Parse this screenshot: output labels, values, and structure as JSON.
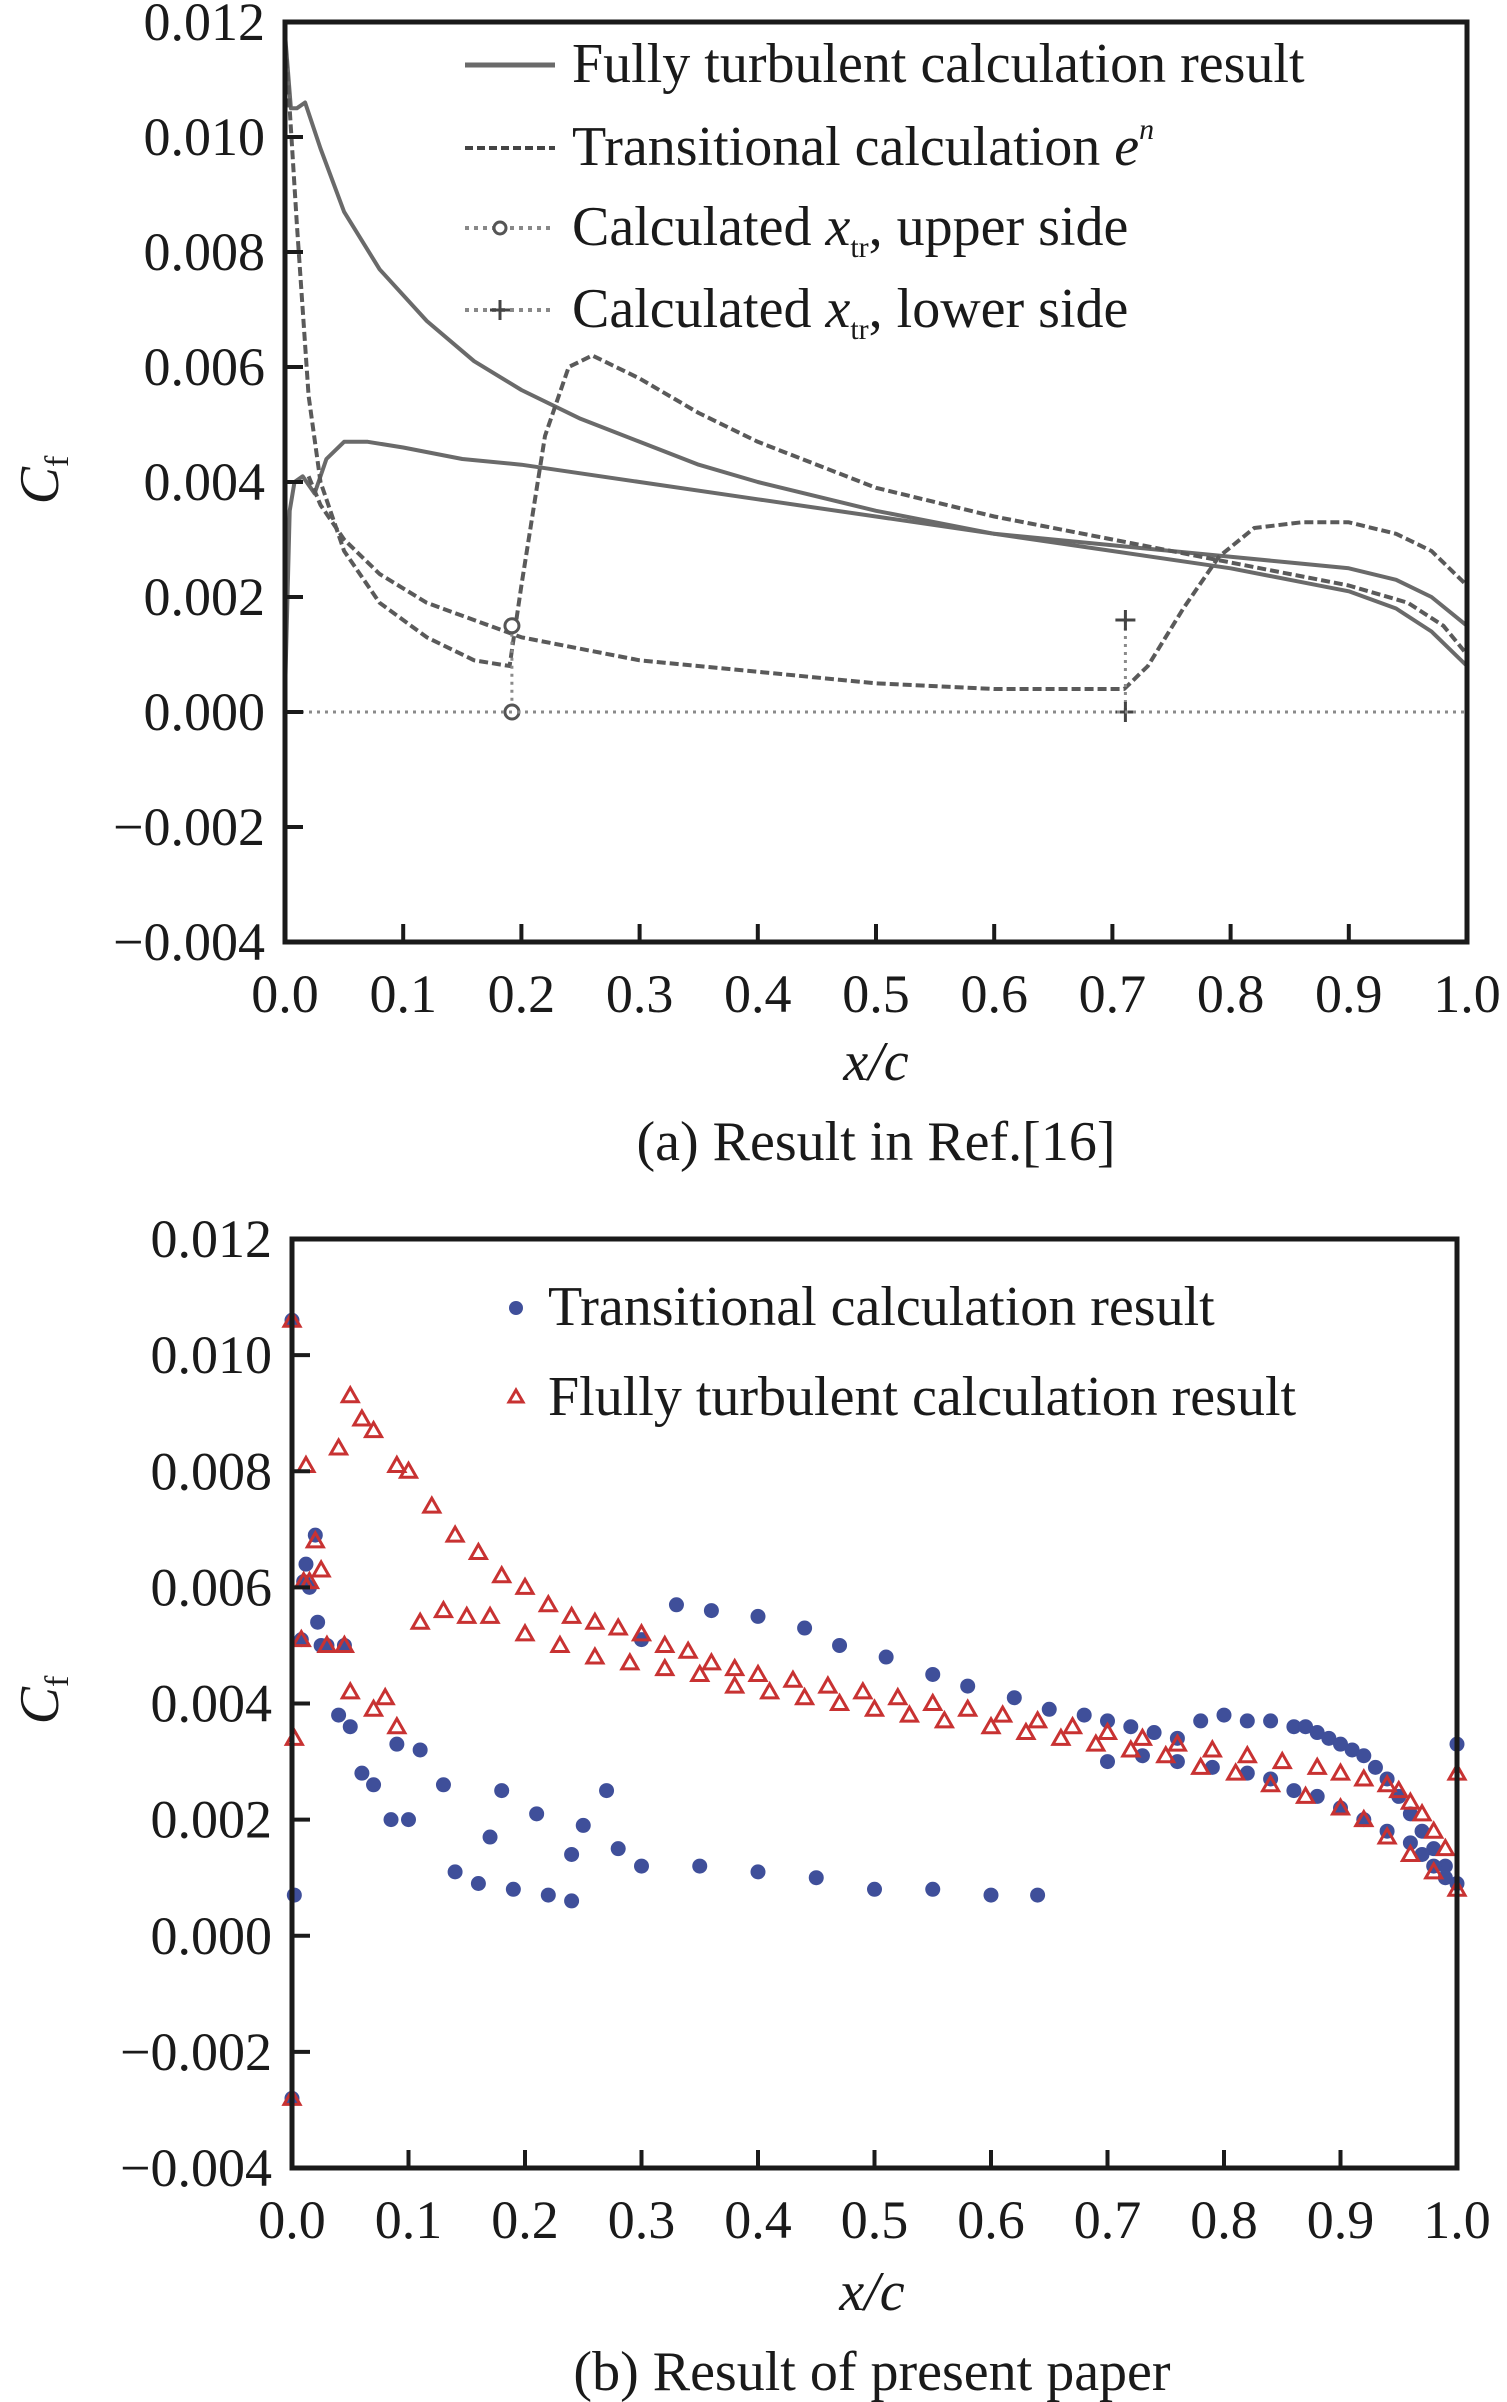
{
  "colors": {
    "axis": "#1a1a1a",
    "ref_line": "#6a6a6a",
    "transitional_marker": "#3f4f9a",
    "turbulent_marker": "#c83232"
  },
  "chart_data": [
    {
      "type": "line",
      "panel": "a",
      "caption": "(a) Result in Ref.[16]",
      "xlabel": "x/c",
      "ylabel": "C",
      "ylabel_sub": "f",
      "xlim": [
        0.0,
        1.0
      ],
      "ylim": [
        -0.004,
        0.012
      ],
      "x_ticks": [
        "0.0",
        "0.1",
        "0.2",
        "0.3",
        "0.4",
        "0.5",
        "0.6",
        "0.7",
        "0.8",
        "0.9",
        "1.0"
      ],
      "y_ticks": [
        "0.012",
        "0.010",
        "0.008",
        "0.006",
        "0.004",
        "0.002",
        "0.000",
        "−0.002",
        "−0.004"
      ],
      "grid": false,
      "legend_position": "top-right",
      "legend": [
        {
          "label_main": "Fully turbulent calculation result",
          "style": "solid"
        },
        {
          "label_main": "Transitional calculation ",
          "label_italic": "e",
          "label_sup": "n",
          "style": "dashed"
        },
        {
          "label_main": "Calculated ",
          "label_italic": "x",
          "label_sub": "tr",
          "label_rest": ", upper side",
          "style": "dotted-circle"
        },
        {
          "label_main": "Calculated ",
          "label_italic": "x",
          "label_sub": "tr",
          "label_rest": ", lower side",
          "style": "dotted-plus"
        }
      ],
      "series": [
        {
          "name": "Fully turbulent upper",
          "style": "solid",
          "x": [
            0.0,
            0.005,
            0.01,
            0.017,
            0.03,
            0.05,
            0.08,
            0.12,
            0.16,
            0.2,
            0.25,
            0.3,
            0.35,
            0.4,
            0.5,
            0.6,
            0.7,
            0.8,
            0.85,
            0.9,
            0.94,
            0.97,
            1.0
          ],
          "y": [
            0.0118,
            0.0105,
            0.0105,
            0.0106,
            0.0098,
            0.0087,
            0.0077,
            0.0068,
            0.0061,
            0.0056,
            0.0051,
            0.0047,
            0.0043,
            0.004,
            0.0035,
            0.0031,
            0.0028,
            0.0025,
            0.0023,
            0.0021,
            0.0018,
            0.0014,
            0.0008
          ]
        },
        {
          "name": "Fully turbulent lower",
          "style": "solid",
          "x": [
            0.0,
            0.004,
            0.008,
            0.015,
            0.025,
            0.035,
            0.05,
            0.07,
            0.1,
            0.15,
            0.2,
            0.3,
            0.4,
            0.5,
            0.6,
            0.7,
            0.8,
            0.85,
            0.9,
            0.94,
            0.97,
            1.0
          ],
          "y": [
            0.0003,
            0.0035,
            0.004,
            0.0041,
            0.0038,
            0.0044,
            0.0047,
            0.0047,
            0.0046,
            0.0044,
            0.0043,
            0.004,
            0.0037,
            0.0034,
            0.0031,
            0.0029,
            0.0027,
            0.0026,
            0.0025,
            0.0023,
            0.002,
            0.0015
          ]
        },
        {
          "name": "Transitional e^n upper",
          "style": "dashed",
          "x": [
            0.0,
            0.01,
            0.02,
            0.03,
            0.05,
            0.08,
            0.12,
            0.16,
            0.19,
            0.2,
            0.22,
            0.24,
            0.26,
            0.3,
            0.35,
            0.4,
            0.5,
            0.6,
            0.7,
            0.8,
            0.9,
            0.95,
            0.98,
            1.0
          ],
          "y": [
            0.0118,
            0.0085,
            0.0055,
            0.004,
            0.0028,
            0.0019,
            0.0013,
            0.0009,
            0.0008,
            0.0022,
            0.0048,
            0.006,
            0.0062,
            0.0058,
            0.0052,
            0.0047,
            0.0039,
            0.0034,
            0.003,
            0.0026,
            0.0022,
            0.0019,
            0.0015,
            0.001
          ]
        },
        {
          "name": "Transitional e^n lower",
          "style": "dashed",
          "x": [
            0.02,
            0.03,
            0.05,
            0.08,
            0.12,
            0.2,
            0.3,
            0.4,
            0.5,
            0.6,
            0.71,
            0.73,
            0.76,
            0.79,
            0.82,
            0.86,
            0.9,
            0.94,
            0.97,
            1.0
          ],
          "y": [
            0.0041,
            0.0036,
            0.003,
            0.0024,
            0.0019,
            0.0013,
            0.0009,
            0.0007,
            0.0005,
            0.0004,
            0.0004,
            0.0008,
            0.0018,
            0.0027,
            0.0032,
            0.0033,
            0.0033,
            0.0031,
            0.0028,
            0.0022
          ]
        },
        {
          "name": "Calculated x_tr upper side",
          "style": "dotted-circle",
          "x": [
            0.192,
            0.192
          ],
          "y": [
            0.0015,
            0.0
          ]
        },
        {
          "name": "Calculated x_tr lower side",
          "style": "dotted-plus",
          "x": [
            0.711,
            0.711
          ],
          "y": [
            0.0016,
            0.0
          ]
        },
        {
          "name": "Zero baseline",
          "style": "dotted",
          "x": [
            0.0,
            1.0
          ],
          "y": [
            0.0,
            0.0
          ]
        }
      ]
    },
    {
      "type": "scatter",
      "panel": "b",
      "caption": "(b) Result of present paper",
      "xlabel": "x/c",
      "ylabel": "C",
      "ylabel_sub": "f",
      "xlim": [
        0.0,
        1.0
      ],
      "ylim": [
        -0.004,
        0.012
      ],
      "x_ticks": [
        "0.0",
        "0.1",
        "0.2",
        "0.3",
        "0.4",
        "0.5",
        "0.6",
        "0.7",
        "0.8",
        "0.9",
        "1.0"
      ],
      "y_ticks": [
        "0.012",
        "0.010",
        "0.008",
        "0.006",
        "0.004",
        "0.002",
        "0.000",
        "−0.002",
        "−0.004"
      ],
      "grid": false,
      "legend_position": "top-right",
      "series": [
        {
          "name": "Transitional calculation result",
          "marker": "circle",
          "x": [
            0.0,
            0.0,
            0.002,
            0.008,
            0.01,
            0.012,
            0.015,
            0.02,
            0.022,
            0.025,
            0.03,
            0.04,
            0.045,
            0.05,
            0.06,
            0.07,
            0.085,
            0.09,
            0.1,
            0.11,
            0.13,
            0.14,
            0.16,
            0.18,
            0.19,
            0.21,
            0.22,
            0.24,
            0.25,
            0.27,
            0.28,
            0.3,
            0.33,
            0.36,
            0.4,
            0.44,
            0.47,
            0.51,
            0.55,
            0.58,
            0.62,
            0.65,
            0.68,
            0.7,
            0.72,
            0.74,
            0.76,
            0.78,
            0.8,
            0.82,
            0.84,
            0.86,
            0.87,
            0.88,
            0.89,
            0.9,
            0.91,
            0.92,
            0.93,
            0.94,
            0.95,
            0.96,
            0.97,
            0.98,
            0.99,
            1.0,
            0.17,
            0.24,
            0.3,
            0.35,
            0.4,
            0.45,
            0.5,
            0.55,
            0.6,
            0.64,
            0.7,
            0.73,
            0.76,
            0.79,
            0.82,
            0.84,
            0.86,
            0.88,
            0.9,
            0.92,
            0.94,
            0.96,
            0.97,
            0.98,
            0.99,
            1.0
          ],
          "y": [
            0.0106,
            -0.0028,
            0.0007,
            0.0051,
            0.0061,
            0.0064,
            0.006,
            0.0069,
            0.0054,
            0.005,
            0.005,
            0.0038,
            0.005,
            0.0036,
            0.0028,
            0.0026,
            0.002,
            0.0033,
            0.002,
            0.0032,
            0.0026,
            0.0011,
            0.0009,
            0.0025,
            0.0008,
            0.0021,
            0.0007,
            0.0006,
            0.0019,
            0.0025,
            0.0015,
            0.0051,
            0.0057,
            0.0056,
            0.0055,
            0.0053,
            0.005,
            0.0048,
            0.0045,
            0.0043,
            0.0041,
            0.0039,
            0.0038,
            0.0037,
            0.0036,
            0.0035,
            0.0034,
            0.0037,
            0.0038,
            0.0037,
            0.0037,
            0.0036,
            0.0036,
            0.0035,
            0.0034,
            0.0033,
            0.0032,
            0.0031,
            0.0029,
            0.0027,
            0.0024,
            0.0021,
            0.0018,
            0.0015,
            0.0012,
            0.0033,
            0.0017,
            0.0014,
            0.0012,
            0.0012,
            0.0011,
            0.001,
            0.0008,
            0.0008,
            0.0007,
            0.0007,
            0.003,
            0.0031,
            0.003,
            0.0029,
            0.0028,
            0.0027,
            0.0025,
            0.0024,
            0.0022,
            0.002,
            0.0018,
            0.0016,
            0.0014,
            0.0012,
            0.001,
            0.0009
          ]
        },
        {
          "name": "Flully turbulent calculation result",
          "marker": "triangle",
          "x": [
            0.0,
            0.0,
            0.002,
            0.008,
            0.01,
            0.012,
            0.015,
            0.02,
            0.025,
            0.03,
            0.04,
            0.045,
            0.05,
            0.06,
            0.07,
            0.08,
            0.09,
            0.1,
            0.12,
            0.14,
            0.16,
            0.18,
            0.2,
            0.22,
            0.24,
            0.26,
            0.28,
            0.3,
            0.32,
            0.34,
            0.36,
            0.38,
            0.4,
            0.43,
            0.46,
            0.49,
            0.52,
            0.55,
            0.58,
            0.61,
            0.64,
            0.67,
            0.7,
            0.73,
            0.76,
            0.79,
            0.82,
            0.85,
            0.88,
            0.9,
            0.92,
            0.94,
            0.95,
            0.96,
            0.97,
            0.98,
            0.99,
            1.0,
            0.05,
            0.07,
            0.09,
            0.11,
            0.13,
            0.15,
            0.17,
            0.2,
            0.23,
            0.26,
            0.29,
            0.32,
            0.35,
            0.38,
            0.41,
            0.44,
            0.47,
            0.5,
            0.53,
            0.56,
            0.6,
            0.63,
            0.66,
            0.69,
            0.72,
            0.75,
            0.78,
            0.81,
            0.84,
            0.87,
            0.9,
            0.92,
            0.94,
            0.96,
            0.98,
            1.0
          ],
          "y": [
            0.0106,
            -0.0028,
            0.0034,
            0.0051,
            0.0061,
            0.0081,
            0.0061,
            0.0068,
            0.0063,
            0.005,
            0.0084,
            0.005,
            0.0093,
            0.0089,
            0.0087,
            0.0041,
            0.0081,
            0.008,
            0.0074,
            0.0069,
            0.0066,
            0.0062,
            0.006,
            0.0057,
            0.0055,
            0.0054,
            0.0053,
            0.0052,
            0.005,
            0.0049,
            0.0047,
            0.0046,
            0.0045,
            0.0044,
            0.0043,
            0.0042,
            0.0041,
            0.004,
            0.0039,
            0.0038,
            0.0037,
            0.0036,
            0.0035,
            0.0034,
            0.0033,
            0.0032,
            0.0031,
            0.003,
            0.0029,
            0.0028,
            0.0027,
            0.0026,
            0.0025,
            0.0023,
            0.0021,
            0.0018,
            0.0015,
            0.0028,
            0.0042,
            0.0039,
            0.0036,
            0.0054,
            0.0056,
            0.0055,
            0.0055,
            0.0052,
            0.005,
            0.0048,
            0.0047,
            0.0046,
            0.0045,
            0.0043,
            0.0042,
            0.0041,
            0.004,
            0.0039,
            0.0038,
            0.0037,
            0.0036,
            0.0035,
            0.0034,
            0.0033,
            0.0032,
            0.0031,
            0.0029,
            0.0028,
            0.0026,
            0.0024,
            0.0022,
            0.002,
            0.0017,
            0.0014,
            0.0011,
            0.0008
          ]
        }
      ],
      "legend": [
        {
          "label": "Transitional calculation result",
          "marker": "circle"
        },
        {
          "label": "Flully turbulent calculation result",
          "marker": "triangle"
        }
      ]
    }
  ]
}
